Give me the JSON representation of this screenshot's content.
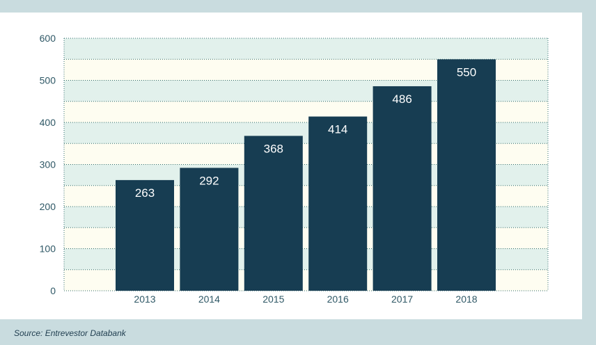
{
  "chart_data": {
    "type": "bar",
    "categories": [
      "2013",
      "2014",
      "2015",
      "2016",
      "2017",
      "2018"
    ],
    "values": [
      263,
      292,
      368,
      414,
      486,
      550
    ],
    "title": "",
    "xlabel": "",
    "ylabel": "",
    "ylim": [
      0,
      600
    ],
    "yticks": [
      0,
      100,
      200,
      300,
      400,
      500,
      600
    ],
    "grid": true,
    "legend": "none",
    "data_labels": true
  },
  "source": "Source: Entrevestor Databank",
  "colors": {
    "bar": "#173d52",
    "band_light": "#fefdf1",
    "band_tint": "#e2f1ec",
    "grid": "#2f6b6b",
    "axis_text": "#2f5866",
    "background": "#c9dcdf",
    "card": "#ffffff"
  }
}
